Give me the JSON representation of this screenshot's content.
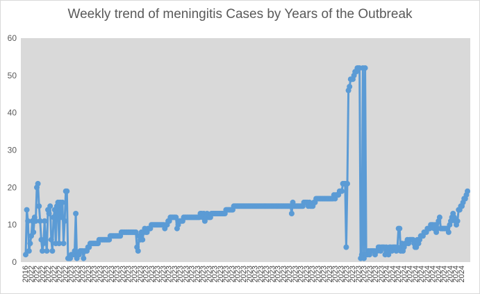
{
  "chart_data": {
    "type": "line",
    "title": "Weekly trend of meningitis Cases by Years of the Outbreak",
    "xlabel": "",
    "ylabel": "",
    "ylim": [
      0,
      60
    ],
    "yticks": [
      0,
      10,
      20,
      30,
      40,
      50,
      60
    ],
    "x_tick_labels": [
      "2016",
      "2022",
      "2022",
      "2022",
      "2022",
      "2022",
      "2022",
      "2022",
      "2023",
      "2023",
      "2023",
      "2023",
      "2023",
      "2023",
      "2023",
      "2023",
      "2023",
      "2023",
      "2023",
      "2023",
      "2023",
      "2023",
      "2023",
      "2023",
      "2023",
      "2023",
      "2023",
      "2023",
      "2023",
      "2023",
      "2023",
      "2023",
      "2023",
      "2023",
      "2023",
      "2023",
      "2023",
      "2023",
      "2023",
      "2023",
      "2023",
      "2023",
      "2023",
      "2023",
      "2023",
      "2023",
      "2023",
      "2023",
      "2023",
      "2023",
      "2023",
      "2023",
      "2023",
      "2023",
      "2023",
      "2023",
      "2023",
      "2023",
      "2023",
      "2023",
      "2023",
      "2023",
      "2023",
      "2024",
      "2024",
      "2024",
      "2024",
      "2024",
      "2024",
      "2024",
      "2024",
      "2024",
      "2024",
      "2024",
      "2024",
      "2024",
      "2024"
    ],
    "grid": false,
    "legend": "none",
    "plot_background": "#d9d9d9",
    "series_color": "#5b9bd5",
    "series": [
      {
        "values": [
          2,
          14,
          11,
          3,
          5,
          7,
          11,
          8,
          12,
          11,
          20,
          21,
          15,
          11,
          6,
          3,
          5,
          11,
          6,
          3,
          14,
          13,
          15,
          6,
          3,
          12,
          14,
          5,
          15,
          16,
          5,
          16,
          12,
          16,
          5,
          11,
          19,
          19,
          1,
          1,
          1,
          2,
          2,
          2,
          3,
          13,
          1,
          2,
          2,
          3,
          3,
          3,
          1,
          3,
          3,
          3,
          4,
          4,
          5,
          5,
          5,
          5,
          5,
          5,
          5,
          5,
          6,
          6,
          6,
          6,
          6,
          6,
          6,
          6,
          6,
          6,
          7,
          7,
          7,
          7,
          7,
          7,
          7,
          7,
          7,
          7,
          8,
          8,
          8,
          8,
          8,
          8,
          8,
          8,
          8,
          8,
          8,
          8,
          8,
          8,
          4,
          3,
          7,
          6,
          8,
          6,
          8,
          9,
          8,
          8,
          9,
          9,
          9,
          10,
          10,
          10,
          10,
          10,
          10,
          10,
          10,
          10,
          10,
          10,
          10,
          9,
          10,
          10,
          11,
          11,
          12,
          12,
          12,
          12,
          12,
          12,
          9,
          10,
          11,
          11,
          11,
          11,
          12,
          12,
          12,
          12,
          12,
          12,
          12,
          12,
          12,
          12,
          12,
          12,
          12,
          12,
          12,
          13,
          13,
          12,
          13,
          11,
          12,
          13,
          12,
          12,
          12,
          13,
          13,
          13,
          13,
          13,
          13,
          13,
          13,
          13,
          13,
          13,
          13,
          13,
          14,
          14,
          14,
          14,
          14,
          14,
          14,
          15,
          15,
          15,
          15,
          15,
          15,
          15,
          15,
          15,
          15,
          15,
          15,
          15,
          15,
          15,
          15,
          15,
          15,
          15,
          15,
          15,
          15,
          15,
          15,
          15,
          15,
          15,
          15,
          15,
          15,
          15,
          15,
          15,
          15,
          15,
          15,
          15,
          15,
          15,
          15,
          15,
          15,
          15,
          15,
          15,
          15,
          15,
          15,
          15,
          15,
          15,
          15,
          13,
          16,
          15,
          15,
          15,
          15,
          15,
          15,
          15,
          15,
          15,
          16,
          16,
          16,
          16,
          15,
          16,
          15,
          15,
          15,
          16,
          16,
          17,
          17,
          17,
          17,
          17,
          17,
          17,
          17,
          17,
          17,
          17,
          17,
          17,
          17,
          17,
          17,
          18,
          17,
          18,
          18,
          18,
          19,
          19,
          19,
          21,
          21,
          21,
          4,
          21,
          46,
          47,
          49,
          49,
          49,
          50,
          51,
          51,
          52,
          52,
          52,
          1,
          2,
          52,
          1,
          52,
          2,
          2,
          3,
          2,
          3,
          3,
          3,
          3,
          2,
          3,
          3,
          4,
          4,
          3,
          4,
          4,
          4,
          2,
          4,
          3,
          2,
          4,
          4,
          3,
          4,
          4,
          4,
          3,
          4,
          9,
          9,
          3,
          5,
          3,
          4,
          5,
          5,
          6,
          5,
          6,
          6,
          6,
          6,
          5,
          4,
          4,
          6,
          5,
          6,
          7,
          7,
          7,
          8,
          8,
          8,
          9,
          9,
          9,
          10,
          10,
          10,
          9,
          10,
          8,
          9,
          11,
          12,
          9,
          9,
          9,
          9,
          9,
          9,
          9,
          8,
          10,
          11,
          12,
          13,
          12,
          11,
          10,
          11,
          14,
          14,
          15,
          15,
          16,
          17,
          17,
          18,
          19
        ]
      }
    ]
  }
}
